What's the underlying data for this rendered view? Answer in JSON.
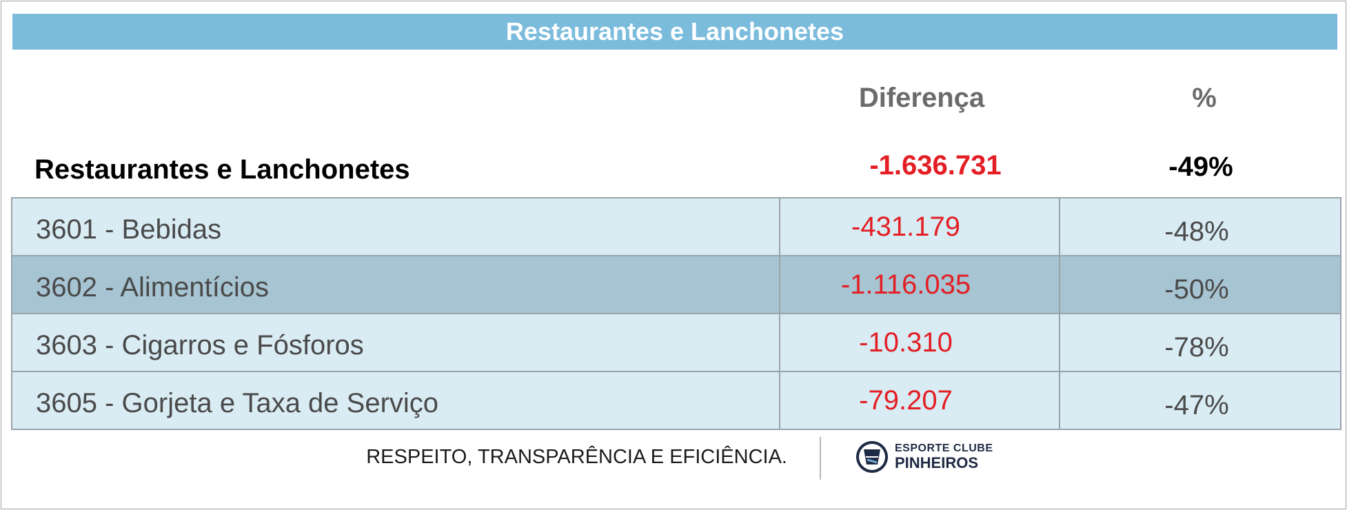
{
  "title": "Restaurantes e Lanchonetes",
  "columns": {
    "diff": "Diferença",
    "pct": "%"
  },
  "total": {
    "label": "Restaurantes e Lanchonetes",
    "diff": "-1.636.731",
    "pct": "-49%"
  },
  "rows": [
    {
      "label": "3601 - Bebidas",
      "diff": "-431.179",
      "pct": "-48%"
    },
    {
      "label": "3602 - Alimentícios",
      "diff": "-1.116.035",
      "pct": "-50%"
    },
    {
      "label": "3603 - Cigarros e Fósforos",
      "diff": "-10.310",
      "pct": "-78%"
    },
    {
      "label": "3605 - Gorjeta e Taxa de Serviço",
      "diff": "-79.207",
      "pct": "-47%"
    }
  ],
  "footer": {
    "slogan": "RESPEITO, TRANSPARÊNCIA E EFICIÊNCIA.",
    "logo_top": "ESPORTE CLUBE",
    "logo_bottom": "PINHEIROS",
    "logo_icon": "club-crest-icon"
  },
  "colors": {
    "title_bar": "#7bbcdc",
    "negative": "#e31e24",
    "row_light": "#d9ebf3",
    "row_dark": "#a6c4d2"
  },
  "chart_data": {
    "type": "table",
    "title": "Restaurantes e Lanchonetes",
    "columns": [
      "",
      "Diferença",
      "%"
    ],
    "total": {
      "category": "Restaurantes e Lanchonetes",
      "diferenca": -1636731,
      "percent": -49
    },
    "categories": [
      "3601 - Bebidas",
      "3602 - Alimentícios",
      "3603 - Cigarros e Fósforos",
      "3605 - Gorjeta e Taxa de Serviço"
    ],
    "series": [
      {
        "name": "Diferença",
        "values": [
          -431179,
          -1116035,
          -10310,
          -79207
        ]
      },
      {
        "name": "%",
        "values": [
          -48,
          -50,
          -78,
          -47
        ]
      }
    ]
  }
}
